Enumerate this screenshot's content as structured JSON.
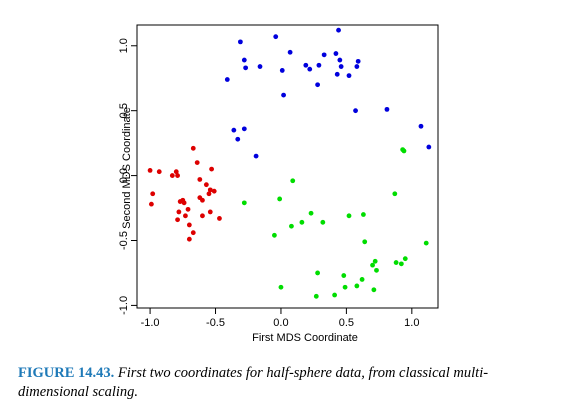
{
  "chart_data": {
    "type": "scatter",
    "title": "",
    "xlabel": "First MDS Coordinate",
    "ylabel": "Second MDS Coordinate",
    "xlim": [
      -1.1,
      1.2
    ],
    "ylim": [
      -1.02,
      1.16
    ],
    "xticks": [
      "-1.0",
      "-0.5",
      "0.0",
      "0.5",
      "1.0"
    ],
    "xtick_values": [
      -1.0,
      -0.5,
      0.0,
      0.5,
      1.0
    ],
    "yticks": [
      "-1.0",
      "-0.5",
      "0.0",
      "0.5",
      "1.0"
    ],
    "ytick_values": [
      -1.0,
      -0.5,
      0.0,
      0.5,
      1.0
    ],
    "grid": false,
    "series": [
      {
        "color": "#0000dd",
        "points": [
          [
            -0.31,
            1.03
          ],
          [
            -0.28,
            0.89
          ],
          [
            -0.27,
            0.83
          ],
          [
            -0.16,
            0.84
          ],
          [
            -0.04,
            1.07
          ],
          [
            0.01,
            0.81
          ],
          [
            0.07,
            0.95
          ],
          [
            0.19,
            0.85
          ],
          [
            0.22,
            0.82
          ],
          [
            0.29,
            0.85
          ],
          [
            0.33,
            0.93
          ],
          [
            0.42,
            0.94
          ],
          [
            0.44,
            1.12
          ],
          [
            0.45,
            0.89
          ],
          [
            0.46,
            0.84
          ],
          [
            0.52,
            0.77
          ],
          [
            0.58,
            0.84
          ],
          [
            0.59,
            0.88
          ],
          [
            0.43,
            0.78
          ],
          [
            0.28,
            0.7
          ],
          [
            0.02,
            0.62
          ],
          [
            -0.41,
            0.74
          ],
          [
            0.57,
            0.5
          ],
          [
            0.81,
            0.51
          ],
          [
            1.07,
            0.38
          ],
          [
            1.13,
            0.22
          ],
          [
            -0.36,
            0.35
          ],
          [
            -0.28,
            0.36
          ],
          [
            -0.33,
            0.28
          ],
          [
            -0.19,
            0.15
          ]
        ]
      },
      {
        "color": "#dd0000",
        "points": [
          [
            -1.0,
            0.04
          ],
          [
            -0.93,
            0.03
          ],
          [
            -0.83,
            0.0
          ],
          [
            -0.79,
            0.0
          ],
          [
            -0.8,
            0.03
          ],
          [
            -0.67,
            0.21
          ],
          [
            -0.64,
            0.1
          ],
          [
            -0.53,
            0.05
          ],
          [
            -0.62,
            -0.03
          ],
          [
            -0.57,
            -0.07
          ],
          [
            -0.54,
            -0.11
          ],
          [
            -0.51,
            -0.12
          ],
          [
            -0.55,
            -0.14
          ],
          [
            -0.6,
            -0.19
          ],
          [
            -0.62,
            -0.17
          ],
          [
            -0.77,
            -0.2
          ],
          [
            -0.74,
            -0.21
          ],
          [
            -0.71,
            -0.26
          ],
          [
            -0.78,
            -0.28
          ],
          [
            -0.73,
            -0.31
          ],
          [
            -0.79,
            -0.34
          ],
          [
            -0.7,
            -0.38
          ],
          [
            -0.67,
            -0.44
          ],
          [
            -0.7,
            -0.49
          ],
          [
            -0.6,
            -0.31
          ],
          [
            -0.54,
            -0.28
          ],
          [
            -0.47,
            -0.33
          ],
          [
            -0.98,
            -0.14
          ],
          [
            -0.99,
            -0.22
          ],
          [
            -0.75,
            -0.19
          ]
        ]
      },
      {
        "color": "#00dd00",
        "points": [
          [
            0.93,
            0.2
          ],
          [
            0.94,
            0.19
          ],
          [
            0.87,
            -0.14
          ],
          [
            0.09,
            -0.04
          ],
          [
            -0.28,
            -0.21
          ],
          [
            -0.01,
            -0.18
          ],
          [
            0.23,
            -0.29
          ],
          [
            0.16,
            -0.36
          ],
          [
            0.08,
            -0.39
          ],
          [
            0.32,
            -0.36
          ],
          [
            -0.05,
            -0.46
          ],
          [
            0.52,
            -0.31
          ],
          [
            0.63,
            -0.3
          ],
          [
            0.64,
            -0.51
          ],
          [
            0.7,
            -0.69
          ],
          [
            0.72,
            -0.66
          ],
          [
            0.73,
            -0.73
          ],
          [
            0.88,
            -0.67
          ],
          [
            0.92,
            -0.68
          ],
          [
            0.95,
            -0.64
          ],
          [
            1.11,
            -0.52
          ],
          [
            0.48,
            -0.77
          ],
          [
            0.62,
            -0.8
          ],
          [
            0.58,
            -0.85
          ],
          [
            0.49,
            -0.86
          ],
          [
            0.71,
            -0.88
          ],
          [
            0.41,
            -0.92
          ],
          [
            0.27,
            -0.93
          ],
          [
            0.28,
            -0.75
          ],
          [
            0.0,
            -0.86
          ]
        ]
      }
    ]
  },
  "caption": {
    "label": "FIGURE 14.43.",
    "text": "First two coordinates for half-sphere data, from classical multi-dimensional scaling."
  }
}
